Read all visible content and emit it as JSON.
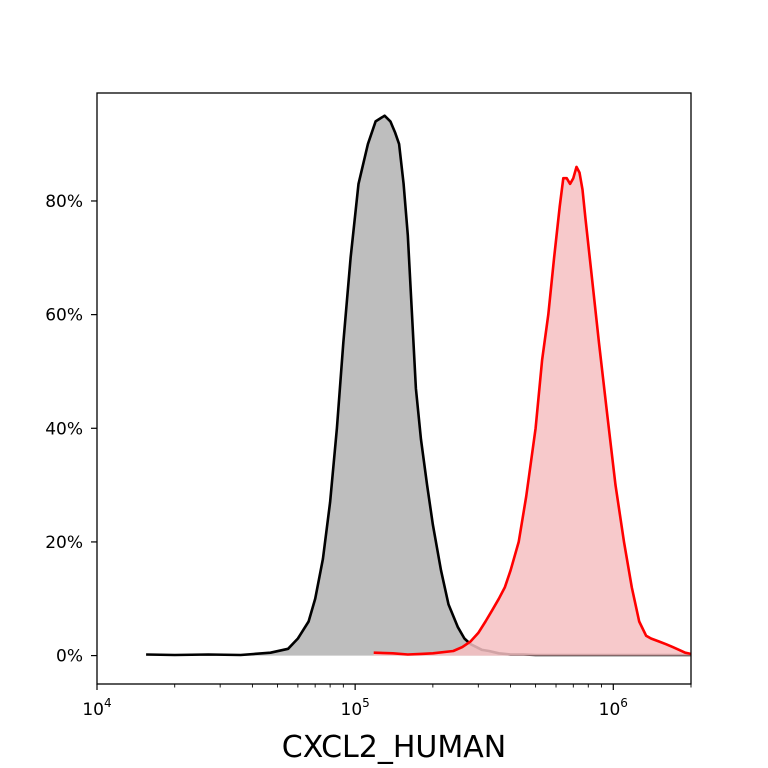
{
  "chart_data": {
    "type": "area",
    "title": "",
    "xlabel": "CXCL2_HUMAN",
    "ylabel": "",
    "x_scale": "log",
    "xlim": [
      10000,
      2000000
    ],
    "ylim": [
      -0.05,
      0.99
    ],
    "x_ticks": [
      {
        "value": 10000,
        "base": "10",
        "exp": "4"
      },
      {
        "value": 100000,
        "base": "10",
        "exp": "5"
      },
      {
        "value": 1000000,
        "base": "10",
        "exp": "6"
      }
    ],
    "y_ticks": [
      {
        "value": 0.0,
        "label": "0%"
      },
      {
        "value": 0.2,
        "label": "20%"
      },
      {
        "value": 0.4,
        "label": "40%"
      },
      {
        "value": 0.6,
        "label": "60%"
      },
      {
        "value": 0.8,
        "label": "80%"
      }
    ],
    "grid": false,
    "legend": "none",
    "series": [
      {
        "line_color": "#000000",
        "fill_color": "#b3b3b3",
        "x": [
          15500,
          20000,
          27000,
          36000,
          47000,
          55000,
          60000,
          66000,
          70000,
          75000,
          80000,
          85000,
          90000,
          96000,
          103000,
          112000,
          120000,
          130000,
          137000,
          143000,
          148000,
          154000,
          160000,
          166000,
          172000,
          180000,
          190000,
          200000,
          215000,
          230000,
          250000,
          265000,
          280000,
          295000,
          310000,
          330000,
          360000,
          400000,
          450000,
          500000,
          600000,
          800000,
          1000000,
          1400000,
          2000000
        ],
        "y": [
          0.002,
          0.001,
          0.002,
          0.001,
          0.005,
          0.012,
          0.03,
          0.06,
          0.1,
          0.17,
          0.27,
          0.4,
          0.55,
          0.7,
          0.83,
          0.9,
          0.94,
          0.95,
          0.94,
          0.92,
          0.9,
          0.83,
          0.74,
          0.6,
          0.47,
          0.38,
          0.3,
          0.23,
          0.15,
          0.09,
          0.05,
          0.03,
          0.02,
          0.015,
          0.01,
          0.008,
          0.004,
          0.002,
          0.002,
          0.001,
          0.001,
          0.001,
          0.001,
          0.001,
          0.001
        ]
      },
      {
        "line_color": "#ff0000",
        "fill_color": "#f6c0c2",
        "x": [
          118000,
          140000,
          160000,
          180000,
          200000,
          240000,
          260000,
          280000,
          300000,
          320000,
          340000,
          360000,
          380000,
          400000,
          430000,
          460000,
          500000,
          530000,
          560000,
          590000,
          620000,
          640000,
          660000,
          680000,
          700000,
          720000,
          740000,
          760000,
          780000,
          820000,
          880000,
          950000,
          1020000,
          1100000,
          1180000,
          1260000,
          1340000,
          1400000,
          1500000,
          1600000,
          1700000,
          1800000,
          1900000,
          2000000
        ],
        "y": [
          0.005,
          0.004,
          0.002,
          0.003,
          0.004,
          0.008,
          0.015,
          0.025,
          0.04,
          0.06,
          0.08,
          0.1,
          0.12,
          0.15,
          0.2,
          0.28,
          0.4,
          0.52,
          0.6,
          0.7,
          0.79,
          0.84,
          0.84,
          0.83,
          0.84,
          0.86,
          0.85,
          0.82,
          0.77,
          0.68,
          0.55,
          0.42,
          0.3,
          0.2,
          0.12,
          0.06,
          0.035,
          0.03,
          0.025,
          0.02,
          0.015,
          0.01,
          0.005,
          0.003
        ]
      }
    ]
  }
}
